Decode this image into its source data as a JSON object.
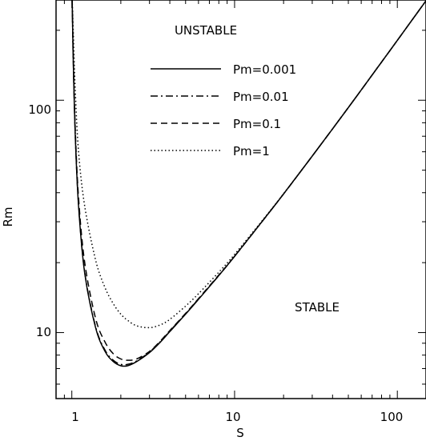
{
  "chart_data": {
    "type": "line",
    "title": "",
    "xlabel": "S",
    "ylabel": "Rm",
    "x_scale": "log",
    "y_scale": "log",
    "xlim": [
      0.8,
      150
    ],
    "ylim": [
      5.2,
      270
    ],
    "grid": false,
    "legend_position": "top-center",
    "x_ticks": [
      {
        "value": 1,
        "label": "1"
      },
      {
        "value": 10,
        "label": "10"
      },
      {
        "value": 100,
        "label": "100"
      }
    ],
    "y_ticks": [
      {
        "value": 10,
        "label": "10"
      },
      {
        "value": 100,
        "label": "100"
      }
    ],
    "annotations": [
      {
        "text": "UNSTABLE",
        "x": 2.5,
        "y": 210
      },
      {
        "text": "STABLE",
        "x": 45,
        "y": 13
      }
    ],
    "series": [
      {
        "name": "Pm=0.001",
        "style": "solid",
        "x": [
          1.005,
          1.02,
          1.05,
          1.1,
          1.2,
          1.4,
          1.6,
          1.8,
          2.0,
          2.2,
          2.5,
          3.0,
          3.5,
          4.0,
          5.0,
          6.0,
          8.0,
          10.0,
          15.0,
          20.0,
          30.0,
          50.0,
          80.0,
          100.0,
          150.0
        ],
        "y": [
          270,
          150,
          70,
          35,
          18,
          10.5,
          8.3,
          7.5,
          7.2,
          7.2,
          7.5,
          8.2,
          9.1,
          10.1,
          12.0,
          13.9,
          17.6,
          21.3,
          30.5,
          39.5,
          57.5,
          93.0,
          146.0,
          181.0,
          268.0
        ]
      },
      {
        "name": "Pm=0.01",
        "style": "dashdot",
        "x": [
          1.005,
          1.02,
          1.05,
          1.1,
          1.2,
          1.4,
          1.6,
          1.8,
          2.0,
          2.2,
          2.5,
          3.0,
          3.5,
          4.0,
          5.0,
          6.0,
          8.0,
          10.0,
          15.0,
          20.0,
          30.0,
          50.0,
          80.0,
          100.0,
          150.0
        ],
        "y": [
          270,
          151,
          71,
          35.5,
          18.2,
          10.6,
          8.4,
          7.6,
          7.3,
          7.3,
          7.55,
          8.25,
          9.15,
          10.15,
          12.05,
          13.95,
          17.6,
          21.3,
          30.5,
          39.5,
          57.5,
          93.0,
          146.0,
          181.0,
          268.0
        ]
      },
      {
        "name": "Pm=0.1",
        "style": "dashed",
        "x": [
          1.005,
          1.02,
          1.05,
          1.1,
          1.2,
          1.4,
          1.6,
          1.8,
          2.0,
          2.2,
          2.5,
          3.0,
          3.5,
          4.0,
          5.0,
          6.0,
          8.0,
          10.0,
          15.0,
          20.0,
          30.0,
          50.0,
          80.0,
          100.0,
          150.0
        ],
        "y": [
          270,
          160,
          75,
          38,
          20,
          11.5,
          9.1,
          8.1,
          7.7,
          7.6,
          7.7,
          8.3,
          9.2,
          10.2,
          12.1,
          14.0,
          17.7,
          21.3,
          30.5,
          39.5,
          57.5,
          93.0,
          146.0,
          181.0,
          268.0
        ]
      },
      {
        "name": "Pm=1",
        "style": "dotted",
        "x": [
          1.005,
          1.02,
          1.05,
          1.1,
          1.2,
          1.4,
          1.6,
          1.8,
          2.0,
          2.2,
          2.5,
          3.0,
          3.5,
          4.0,
          5.0,
          6.0,
          8.0,
          10.0,
          15.0,
          20.0,
          30.0,
          50.0,
          80.0,
          100.0,
          150.0
        ],
        "y": [
          270,
          200,
          110,
          60,
          35,
          20.5,
          15.6,
          13.3,
          12.0,
          11.3,
          10.7,
          10.5,
          10.8,
          11.4,
          13.0,
          14.7,
          18.2,
          21.7,
          30.7,
          39.6,
          57.5,
          93.0,
          146.0,
          181.0,
          268.0
        ]
      }
    ]
  }
}
